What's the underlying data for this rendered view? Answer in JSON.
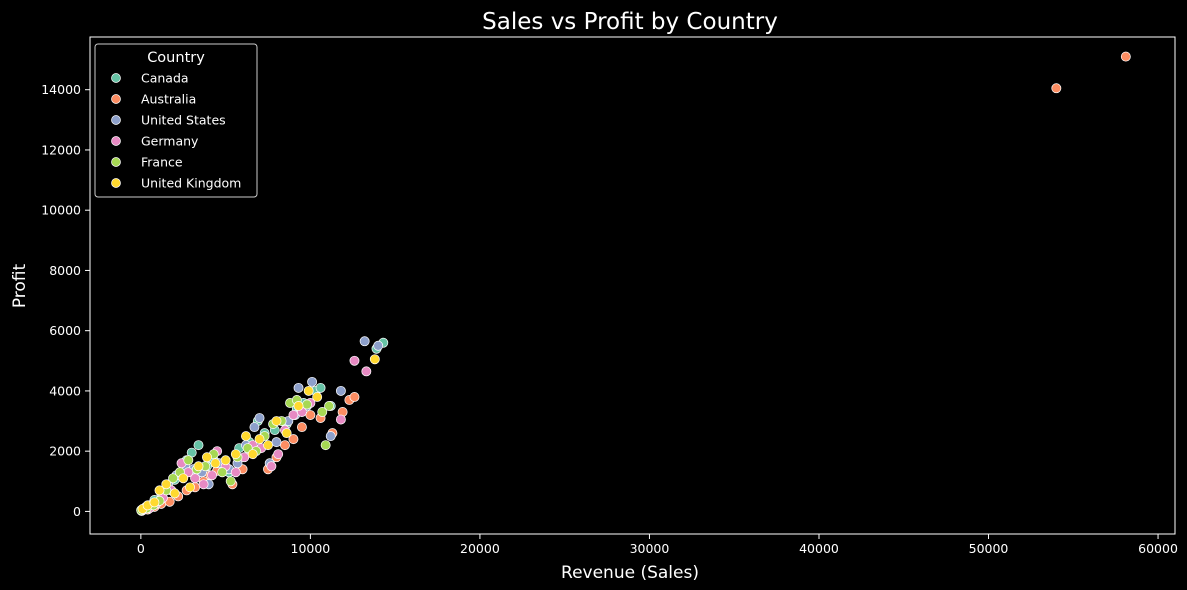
{
  "colors": {
    "background": "#000000",
    "foreground": "#ffffff",
    "marker_edge": "#ffffff"
  },
  "chart_data": {
    "type": "scatter",
    "title": "Sales vs Profit by Country",
    "xlabel": "Revenue (Sales)",
    "ylabel": "Profit",
    "xlim": [
      -3000,
      61000
    ],
    "ylim": [
      -750,
      15750
    ],
    "xticks": [
      0,
      10000,
      20000,
      30000,
      40000,
      50000,
      60000
    ],
    "yticks": [
      0,
      2000,
      4000,
      6000,
      8000,
      10000,
      12000,
      14000
    ],
    "grid": false,
    "legend": {
      "title": "Country",
      "placement": "top-left"
    },
    "series": [
      {
        "name": "Canada",
        "color": "#66c2a5",
        "points": [
          [
            30,
            20
          ],
          [
            150,
            80
          ],
          [
            450,
            200
          ],
          [
            800,
            380
          ],
          [
            1200,
            600
          ],
          [
            1600,
            800
          ],
          [
            2000,
            1050
          ],
          [
            2400,
            1300
          ],
          [
            2700,
            1700
          ],
          [
            3000,
            1950
          ],
          [
            3400,
            2200
          ],
          [
            3900,
            1500
          ],
          [
            4300,
            1700
          ],
          [
            5200,
            1300
          ],
          [
            5800,
            2100
          ],
          [
            6400,
            2300
          ],
          [
            6900,
            3000
          ],
          [
            7300,
            2600
          ],
          [
            7900,
            2700
          ],
          [
            8600,
            2900
          ],
          [
            9200,
            3400
          ],
          [
            9600,
            3600
          ],
          [
            10300,
            4000
          ],
          [
            10600,
            4100
          ],
          [
            11200,
            3500
          ],
          [
            13900,
            5400
          ],
          [
            14300,
            5600
          ]
        ]
      },
      {
        "name": "Australia",
        "color": "#fc8d62",
        "points": [
          [
            60,
            20
          ],
          [
            400,
            60
          ],
          [
            800,
            150
          ],
          [
            1200,
            250
          ],
          [
            1700,
            320
          ],
          [
            2200,
            500
          ],
          [
            2700,
            700
          ],
          [
            3200,
            800
          ],
          [
            3700,
            1000
          ],
          [
            4100,
            1200
          ],
          [
            4500,
            1350
          ],
          [
            5400,
            900
          ],
          [
            6000,
            1400
          ],
          [
            6500,
            2000
          ],
          [
            7500,
            1400
          ],
          [
            8000,
            1800
          ],
          [
            8500,
            2200
          ],
          [
            9000,
            2400
          ],
          [
            9500,
            2800
          ],
          [
            10000,
            3200
          ],
          [
            10600,
            3100
          ],
          [
            11300,
            2600
          ],
          [
            11900,
            3300
          ],
          [
            12300,
            3700
          ],
          [
            12600,
            3800
          ],
          [
            54000,
            14050
          ],
          [
            58100,
            15100
          ]
        ]
      },
      {
        "name": "United States",
        "color": "#8da0cb",
        "points": [
          [
            40,
            50
          ],
          [
            300,
            150
          ],
          [
            700,
            250
          ],
          [
            1200,
            400
          ],
          [
            1600,
            900
          ],
          [
            2100,
            1200
          ],
          [
            2600,
            1500
          ],
          [
            3100,
            1400
          ],
          [
            3600,
            1300
          ],
          [
            4000,
            900
          ],
          [
            4600,
            1600
          ],
          [
            5200,
            1400
          ],
          [
            5700,
            1600
          ],
          [
            6200,
            2200
          ],
          [
            6700,
            2800
          ],
          [
            7000,
            3100
          ],
          [
            7600,
            1600
          ],
          [
            8000,
            2300
          ],
          [
            8700,
            3000
          ],
          [
            9100,
            3200
          ],
          [
            9300,
            4100
          ],
          [
            9800,
            3500
          ],
          [
            10100,
            4300
          ],
          [
            11200,
            2500
          ],
          [
            11800,
            4000
          ],
          [
            13200,
            5650
          ],
          [
            14000,
            5500
          ]
        ]
      },
      {
        "name": "Germany",
        "color": "#e78ac3",
        "points": [
          [
            80,
            30
          ],
          [
            500,
            100
          ],
          [
            900,
            250
          ],
          [
            1300,
            450
          ],
          [
            1800,
            700
          ],
          [
            2400,
            1600
          ],
          [
            2800,
            1300
          ],
          [
            3200,
            1100
          ],
          [
            3700,
            900
          ],
          [
            4200,
            1200
          ],
          [
            4500,
            2000
          ],
          [
            5000,
            1500
          ],
          [
            5600,
            1300
          ],
          [
            6100,
            1800
          ],
          [
            6600,
            2200
          ],
          [
            7100,
            2100
          ],
          [
            7700,
            1500
          ],
          [
            8100,
            1900
          ],
          [
            8500,
            2700
          ],
          [
            9000,
            3200
          ],
          [
            9500,
            3300
          ],
          [
            10000,
            3600
          ],
          [
            11800,
            3050
          ],
          [
            12600,
            5000
          ],
          [
            13300,
            4650
          ]
        ]
      },
      {
        "name": "France",
        "color": "#a6d854",
        "points": [
          [
            20,
            40
          ],
          [
            350,
            100
          ],
          [
            750,
            200
          ],
          [
            1100,
            350
          ],
          [
            1500,
            700
          ],
          [
            1900,
            1100
          ],
          [
            2300,
            1300
          ],
          [
            2800,
            1700
          ],
          [
            3300,
            1400
          ],
          [
            3800,
            1500
          ],
          [
            4300,
            1900
          ],
          [
            4800,
            1300
          ],
          [
            5300,
            1000
          ],
          [
            5700,
            1800
          ],
          [
            6300,
            2100
          ],
          [
            6800,
            2000
          ],
          [
            7300,
            2500
          ],
          [
            7800,
            2900
          ],
          [
            8300,
            3000
          ],
          [
            8800,
            3600
          ],
          [
            9200,
            3700
          ],
          [
            9800,
            3550
          ],
          [
            10700,
            3300
          ],
          [
            10900,
            2200
          ],
          [
            11100,
            3500
          ]
        ]
      },
      {
        "name": "United Kingdom",
        "color": "#ffd92f",
        "points": [
          [
            100,
            80
          ],
          [
            400,
            200
          ],
          [
            800,
            300
          ],
          [
            1100,
            700
          ],
          [
            1500,
            900
          ],
          [
            2000,
            600
          ],
          [
            2500,
            1100
          ],
          [
            2900,
            800
          ],
          [
            3400,
            1500
          ],
          [
            3900,
            1800
          ],
          [
            4400,
            1600
          ],
          [
            5000,
            1700
          ],
          [
            5600,
            1900
          ],
          [
            6200,
            2500
          ],
          [
            6600,
            1900
          ],
          [
            7000,
            2400
          ],
          [
            7500,
            2200
          ],
          [
            8000,
            3000
          ],
          [
            8600,
            2600
          ],
          [
            9300,
            3500
          ],
          [
            9900,
            4000
          ],
          [
            10400,
            3800
          ],
          [
            13800,
            5050
          ]
        ]
      }
    ]
  }
}
